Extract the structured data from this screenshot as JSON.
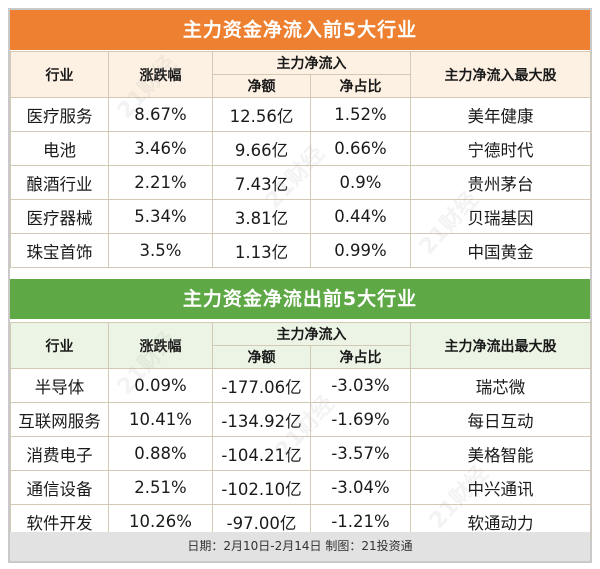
{
  "inflow": {
    "title": "主力资金净流入前5大行业",
    "headers": {
      "industry": "行业",
      "change": "涨跌幅",
      "main_flow": "主力净流入",
      "amount": "净额",
      "ratio": "净占比",
      "top_stock": "主力净流入最大股"
    },
    "rows": [
      {
        "industry": "医疗服务",
        "change": "8.67%",
        "amount": "12.56亿",
        "ratio": "1.52%",
        "top_stock": "美年健康"
      },
      {
        "industry": "电池",
        "change": "3.46%",
        "amount": "9.66亿",
        "ratio": "0.66%",
        "top_stock": "宁德时代"
      },
      {
        "industry": "酿酒行业",
        "change": "2.21%",
        "amount": "7.43亿",
        "ratio": "0.9%",
        "top_stock": "贵州茅台"
      },
      {
        "industry": "医疗器械",
        "change": "5.34%",
        "amount": "3.81亿",
        "ratio": "0.44%",
        "top_stock": "贝瑞基因"
      },
      {
        "industry": "珠宝首饰",
        "change": "3.5%",
        "amount": "1.13亿",
        "ratio": "0.99%",
        "top_stock": "中国黄金"
      }
    ]
  },
  "outflow": {
    "title": "主力资金净流出前5大行业",
    "headers": {
      "industry": "行业",
      "change": "涨跌幅",
      "main_flow": "主力净流入",
      "amount": "净额",
      "ratio": "净占比",
      "top_stock": "主力净流出最大股"
    },
    "rows": [
      {
        "industry": "半导体",
        "change": "0.09%",
        "amount": "-177.06亿",
        "ratio": "-3.03%",
        "top_stock": "瑞芯微"
      },
      {
        "industry": "互联网服务",
        "change": "10.41%",
        "amount": "-134.92亿",
        "ratio": "-1.69%",
        "top_stock": "每日互动"
      },
      {
        "industry": "消费电子",
        "change": "0.88%",
        "amount": "-104.21亿",
        "ratio": "-3.57%",
        "top_stock": "美格智能"
      },
      {
        "industry": "通信设备",
        "change": "2.51%",
        "amount": "-102.10亿",
        "ratio": "-3.04%",
        "top_stock": "中兴通讯"
      },
      {
        "industry": "软件开发",
        "change": "10.26%",
        "amount": "-97.00亿",
        "ratio": "-1.21%",
        "top_stock": "软通动力"
      }
    ]
  },
  "footer": "日期：2月10日-2月14日 制图：21投资通",
  "watermark": "21财经",
  "colors": {
    "inflow_title_bg": "#ee8131",
    "outflow_title_bg": "#5ea846",
    "footer_bg": "#e2e2e2"
  }
}
